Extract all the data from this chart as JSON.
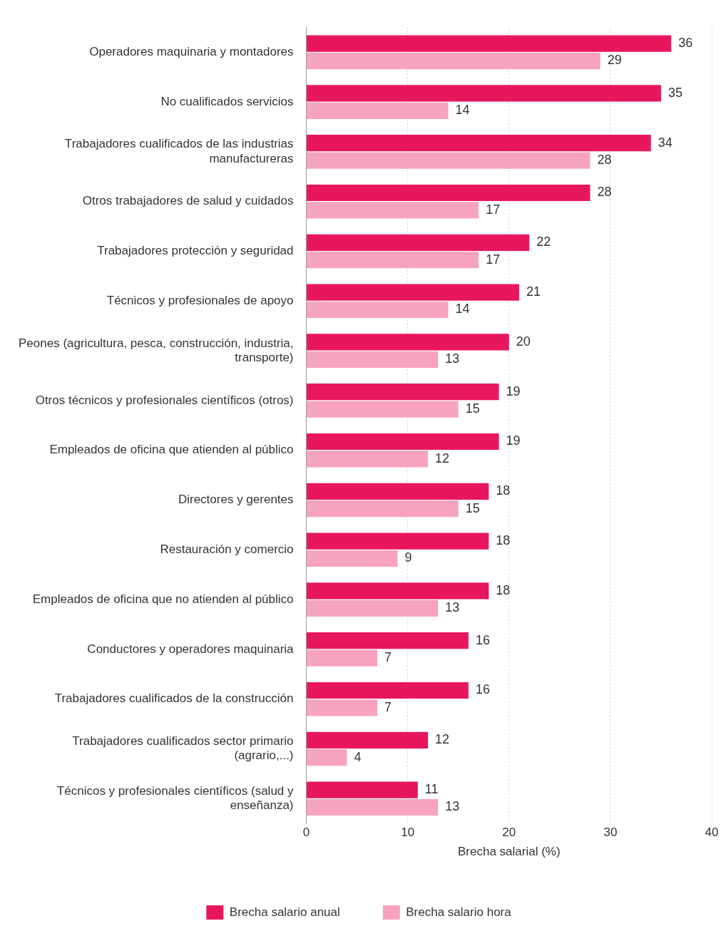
{
  "chart_data": {
    "type": "bar",
    "orientation": "horizontal",
    "xlabel": "Brecha salarial (%)",
    "categories": [
      "Operadores maquinaria y montadores",
      "No cualificados servicios",
      "Trabajadores cualificados de las industrias manufactureras",
      "Otros trabajadores de salud y cuidados",
      "Trabajadores protección y seguridad",
      "Técnicos y profesionales de apoyo",
      "Peones (agricultura, pesca, construcción, industria, transporte)",
      "Otros técnicos y profesionales científicos (otros)",
      "Empleados de oficina que atienden al público",
      "Directores y gerentes",
      "Restauración y comercio",
      "Empleados de oficina que no atienden al público",
      "Conductores y operadores maquinaria",
      "Trabajadores cualificados de la construcción",
      "Trabajadores cualificados sector primario (agrario,...)",
      "Técnicos y profesionales científicos (salud y enseñanza)"
    ],
    "series": [
      {
        "name": "Brecha salario anual",
        "color": "#e8175d",
        "values": [
          36,
          35,
          34,
          28,
          22,
          21,
          20,
          19,
          19,
          18,
          18,
          18,
          16,
          16,
          12,
          11
        ]
      },
      {
        "name": "Brecha salario hora",
        "color": "#f7a3c0",
        "values": [
          29,
          14,
          28,
          17,
          17,
          14,
          13,
          15,
          12,
          15,
          9,
          13,
          7,
          7,
          4,
          13
        ]
      }
    ],
    "xlim": [
      0,
      40
    ],
    "xticks": [
      0,
      10,
      20,
      30,
      40
    ],
    "grid": "x",
    "legend": "bottom",
    "data_labels": true
  }
}
